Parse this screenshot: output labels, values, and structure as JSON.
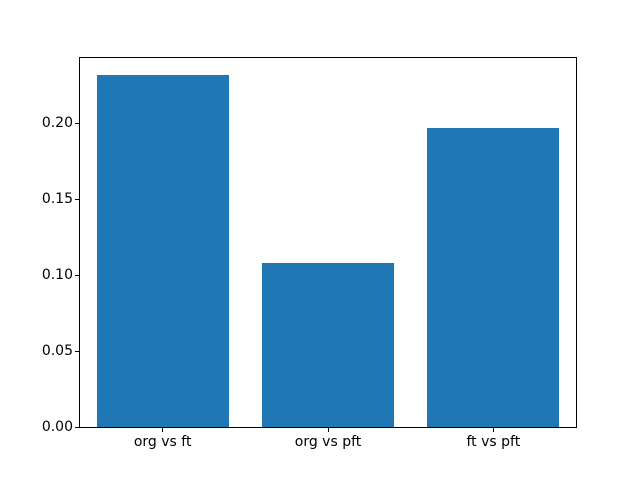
{
  "chart_data": {
    "type": "bar",
    "title": "",
    "xlabel": "",
    "ylabel": "",
    "categories": [
      "org vs ft",
      "org vs pft",
      "ft vs pft"
    ],
    "values": [
      0.232,
      0.108,
      0.197
    ],
    "yticks": [
      0.0,
      0.05,
      0.1,
      0.15,
      0.2
    ],
    "ytick_labels": [
      "0.00",
      "0.05",
      "0.10",
      "0.15",
      "0.20"
    ],
    "ylim": [
      0,
      0.243
    ],
    "bar_color": "#1f77b4",
    "axis_color": "#000000",
    "background_color": "#ffffff",
    "bar_width_fraction": 0.8,
    "grid": false,
    "legend": null
  }
}
